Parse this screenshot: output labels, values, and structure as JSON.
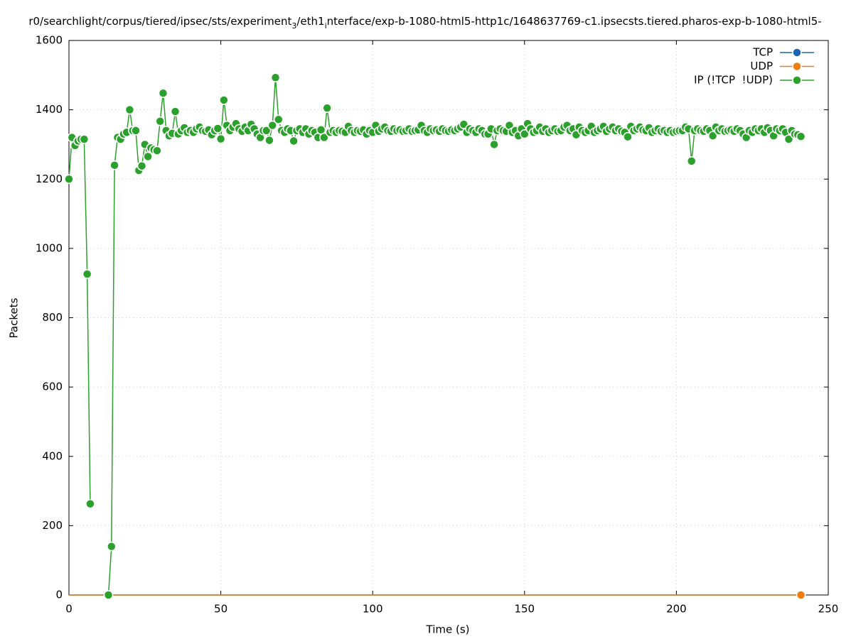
{
  "chart_data": {
    "type": "line",
    "title": [
      {
        "text": "r0/searchlight/corpus/tiered/ipsec/sts/experiment"
      },
      {
        "text": "3",
        "subscript": true
      },
      {
        "text": "/eth1"
      },
      {
        "text": "i",
        "subscript": true
      },
      {
        "text": "nterface/exp-b-1080-html5-http1c/1648637769-c1.ipsecsts.tiered.pharos-exp-b-1080-html5-"
      }
    ],
    "x_label": "Time (s)",
    "y_label": "Packets",
    "xlim": [
      0,
      250
    ],
    "xticks": [
      0,
      50,
      100,
      150,
      200,
      250
    ],
    "ylim": [
      0,
      1600
    ],
    "yticks": [
      0,
      200,
      400,
      600,
      800,
      1000,
      1200,
      1400,
      1600
    ],
    "grid": true,
    "legend": "top-right",
    "x": [
      0,
      1,
      2,
      3,
      4,
      5,
      6,
      7,
      8,
      9,
      10,
      11,
      12,
      13,
      14,
      15,
      16,
      17,
      18,
      19,
      20,
      21,
      22,
      23,
      24,
      25,
      26,
      27,
      28,
      29,
      30,
      31,
      32,
      33,
      34,
      35,
      36,
      37,
      38,
      39,
      40,
      41,
      42,
      43,
      44,
      45,
      46,
      47,
      48,
      49,
      50,
      51,
      52,
      53,
      54,
      55,
      56,
      57,
      58,
      59,
      60,
      61,
      62,
      63,
      64,
      65,
      66,
      67,
      68,
      69,
      70,
      71,
      72,
      73,
      74,
      75,
      76,
      77,
      78,
      79,
      80,
      81,
      82,
      83,
      84,
      85,
      86,
      87,
      88,
      89,
      90,
      91,
      92,
      93,
      94,
      95,
      96,
      97,
      98,
      99,
      100,
      101,
      102,
      103,
      104,
      105,
      106,
      107,
      108,
      109,
      110,
      111,
      112,
      113,
      114,
      115,
      116,
      117,
      118,
      119,
      120,
      121,
      122,
      123,
      124,
      125,
      126,
      127,
      128,
      129,
      130,
      131,
      132,
      133,
      134,
      135,
      136,
      137,
      138,
      139,
      140,
      141,
      142,
      143,
      144,
      145,
      146,
      147,
      148,
      149,
      150,
      151,
      152,
      153,
      154,
      155,
      156,
      157,
      158,
      159,
      160,
      161,
      162,
      163,
      164,
      165,
      166,
      167,
      168,
      169,
      170,
      171,
      172,
      173,
      174,
      175,
      176,
      177,
      178,
      179,
      180,
      181,
      182,
      183,
      184,
      185,
      186,
      187,
      188,
      189,
      190,
      191,
      192,
      193,
      194,
      195,
      196,
      197,
      198,
      199,
      200,
      201,
      202,
      203,
      204,
      205,
      206,
      207,
      208,
      209,
      210,
      211,
      212,
      213,
      214,
      215,
      216,
      217,
      218,
      219,
      220,
      221,
      222,
      223,
      224,
      225,
      226,
      227,
      228,
      229,
      230,
      231,
      232,
      233,
      234,
      235,
      236,
      237,
      238,
      239,
      240,
      241
    ],
    "series": [
      {
        "name": "TCP",
        "color": "#1f64b4",
        "values": [
          0,
          0,
          0,
          0,
          0,
          0,
          0,
          0,
          0,
          0,
          0,
          0,
          0,
          0,
          0,
          0,
          0,
          0,
          0,
          0,
          0,
          0,
          0,
          0,
          0,
          0,
          0,
          0,
          0,
          0,
          0,
          0,
          0,
          0,
          0,
          0,
          0,
          0,
          0,
          0,
          0,
          0,
          0,
          0,
          0,
          0,
          0,
          0,
          0,
          0,
          0,
          0,
          0,
          0,
          0,
          0,
          0,
          0,
          0,
          0,
          0,
          0,
          0,
          0,
          0,
          0,
          0,
          0,
          0,
          0,
          0,
          0,
          0,
          0,
          0,
          0,
          0,
          0,
          0,
          0,
          0,
          0,
          0,
          0,
          0,
          0,
          0,
          0,
          0,
          0,
          0,
          0,
          0,
          0,
          0,
          0,
          0,
          0,
          0,
          0,
          0,
          0,
          0,
          0,
          0,
          0,
          0,
          0,
          0,
          0,
          0,
          0,
          0,
          0,
          0,
          0,
          0,
          0,
          0,
          0,
          0,
          0,
          0,
          0,
          0,
          0,
          0,
          0,
          0,
          0,
          0,
          0,
          0,
          0,
          0,
          0,
          0,
          0,
          0,
          0,
          0,
          0,
          0,
          0,
          0,
          0,
          0,
          0,
          0,
          0,
          0,
          0,
          0,
          0,
          0,
          0,
          0,
          0,
          0,
          0,
          0,
          0,
          0,
          0,
          0,
          0,
          0,
          0,
          0,
          0,
          0,
          0,
          0,
          0,
          0,
          0,
          0,
          0,
          0,
          0,
          0,
          0,
          0,
          0,
          0,
          0,
          0,
          0,
          0,
          0,
          0,
          0,
          0,
          0,
          0,
          0,
          0,
          0,
          0,
          0,
          0,
          0,
          0,
          0,
          0,
          0,
          0,
          0,
          0,
          0,
          0,
          0,
          0,
          0,
          0,
          0,
          0,
          0,
          0,
          0,
          0,
          0,
          0,
          0,
          0,
          0,
          0,
          0,
          0,
          0,
          0,
          0,
          0,
          0,
          0,
          0,
          0,
          0,
          0,
          0,
          0,
          0
        ]
      },
      {
        "name": "UDP",
        "color": "#f07d12",
        "values": [
          0,
          0,
          0,
          0,
          0,
          0,
          0,
          0,
          0,
          0,
          0,
          0,
          0,
          0,
          0,
          0,
          0,
          0,
          0,
          0,
          0,
          0,
          0,
          0,
          0,
          0,
          0,
          0,
          0,
          0,
          0,
          0,
          0,
          0,
          0,
          0,
          0,
          0,
          0,
          0,
          0,
          0,
          0,
          0,
          0,
          0,
          0,
          0,
          0,
          0,
          0,
          0,
          0,
          0,
          0,
          0,
          0,
          0,
          0,
          0,
          0,
          0,
          0,
          0,
          0,
          0,
          0,
          0,
          0,
          0,
          0,
          0,
          0,
          0,
          0,
          0,
          0,
          0,
          0,
          0,
          0,
          0,
          0,
          0,
          0,
          0,
          0,
          0,
          0,
          0,
          0,
          0,
          0,
          0,
          0,
          0,
          0,
          0,
          0,
          0,
          0,
          0,
          0,
          0,
          0,
          0,
          0,
          0,
          0,
          0,
          0,
          0,
          0,
          0,
          0,
          0,
          0,
          0,
          0,
          0,
          0,
          0,
          0,
          0,
          0,
          0,
          0,
          0,
          0,
          0,
          0,
          0,
          0,
          0,
          0,
          0,
          0,
          0,
          0,
          0,
          0,
          0,
          0,
          0,
          0,
          0,
          0,
          0,
          0,
          0,
          0,
          0,
          0,
          0,
          0,
          0,
          0,
          0,
          0,
          0,
          0,
          0,
          0,
          0,
          0,
          0,
          0,
          0,
          0,
          0,
          0,
          0,
          0,
          0,
          0,
          0,
          0,
          0,
          0,
          0,
          0,
          0,
          0,
          0,
          0,
          0,
          0,
          0,
          0,
          0,
          0,
          0,
          0,
          0,
          0,
          0,
          0,
          0,
          0,
          0,
          0,
          0,
          0,
          0,
          0,
          0,
          0,
          0,
          0,
          0,
          0,
          0,
          0,
          0,
          0,
          0,
          0,
          0,
          0,
          0,
          0,
          0,
          0,
          0,
          0,
          0,
          0,
          0,
          0,
          0,
          0,
          0,
          0,
          0,
          0,
          0,
          0,
          0,
          0,
          0,
          0,
          0
        ]
      },
      {
        "name": "IP (!TCP  !UDP)",
        "color": "#2ca02c",
        "values": [
          1200,
          1320,
          1297,
          1310,
          1315,
          1315,
          926,
          263,
          null,
          null,
          null,
          null,
          null,
          0,
          140,
          1240,
          1320,
          1315,
          1330,
          1335,
          1400,
          1340,
          1340,
          1225,
          1238,
          1300,
          1265,
          1290,
          1285,
          1282,
          1367,
          1448,
          1340,
          1325,
          1332,
          1395,
          1330,
          1340,
          1348,
          1335,
          1340,
          1335,
          1345,
          1350,
          1340,
          1338,
          1342,
          1328,
          1340,
          1346,
          1316,
          1428,
          1355,
          1340,
          1350,
          1360,
          1345,
          1338,
          1350,
          1340,
          1358,
          1345,
          1330,
          1320,
          1340,
          1340,
          1312,
          1355,
          1493,
          1372,
          1340,
          1335,
          1345,
          1340,
          1310,
          1340,
          1345,
          1335,
          1345,
          1330,
          1340,
          1335,
          1320,
          1342,
          1320,
          1405,
          1335,
          1340,
          1335,
          1340,
          1338,
          1335,
          1352,
          1340,
          1335,
          1340,
          1338,
          1342,
          1330,
          1340,
          1335,
          1355,
          1338,
          1345,
          1350,
          1340,
          1338,
          1345,
          1340,
          1342,
          1338,
          1340,
          1345,
          1338,
          1340,
          1342,
          1355,
          1340,
          1335,
          1345,
          1340,
          1342,
          1338,
          1345,
          1340,
          1338,
          1342,
          1340,
          1345,
          1350,
          1358,
          1335,
          1345,
          1340,
          1335,
          1345,
          1340,
          1330,
          1330,
          1345,
          1300,
          1340,
          1345,
          1340,
          1338,
          1355,
          1335,
          1340,
          1325,
          1345,
          1330,
          1360,
          1345,
          1335,
          1340,
          1350,
          1338,
          1345,
          1335,
          1340,
          1345,
          1338,
          1340,
          1350,
          1355,
          1340,
          1345,
          1328,
          1350,
          1340,
          1335,
          1340,
          1352,
          1335,
          1340,
          1345,
          1352,
          1338,
          1345,
          1350,
          1340,
          1345,
          1338,
          1335,
          1322,
          1352,
          1340,
          1345,
          1350,
          1342,
          1340,
          1348,
          1335,
          1340,
          1345,
          1338,
          1340,
          1335,
          1340,
          1335,
          1338,
          1340,
          1340,
          1350,
          1345,
          1252,
          1340,
          1345,
          1340,
          1338,
          1345,
          1340,
          1325,
          1350,
          1340,
          1345,
          1338,
          1340,
          1342,
          1338,
          1345,
          1340,
          1330,
          1320,
          1340,
          1335,
          1345,
          1340,
          1345,
          1335,
          1348,
          1340,
          1325,
          1345,
          1340,
          1345,
          1335,
          1315,
          1340,
          1330,
          1328,
          1323
        ]
      }
    ]
  }
}
